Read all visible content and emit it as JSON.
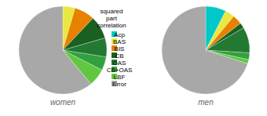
{
  "chart_data": {
    "type": "pie",
    "categories": [
      "Acp",
      "BAS",
      "BIS",
      "CB",
      "OAS",
      "CB+OAS",
      "LBF",
      "Error"
    ],
    "colors": [
      "#00c8c8",
      "#e8e840",
      "#e88000",
      "#1a6020",
      "#237832",
      "#33a040",
      "#60c840",
      "#a8a8a8"
    ],
    "series": [
      {
        "name": "women",
        "values": [
          0.001,
          4.5,
          7.5,
          8.5,
          7.0,
          5.0,
          6.5,
          61.0
        ]
      },
      {
        "name": "men",
        "values": [
          7.5,
          3.5,
          3.5,
          2.0,
          9.5,
          2.5,
          1.5,
          70.0
        ]
      }
    ],
    "legend_title": "squared\npart\ncorrelation",
    "legend": "center"
  }
}
